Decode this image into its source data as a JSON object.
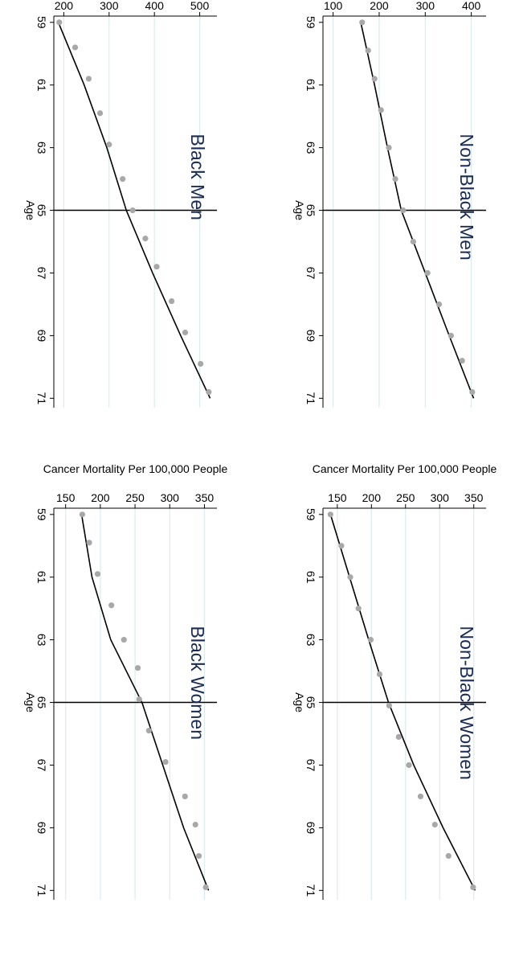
{
  "figure": {
    "ylabel": "Cancer Mortality Per 100,000 People",
    "xlabel": "Age",
    "cutoff": 65
  },
  "colors": {
    "fit_line": "#000000",
    "points": "#a8a8a8",
    "grid": "#d9ecee",
    "title": "#1a2c55",
    "axis": "#000000"
  },
  "chart_data": [
    {
      "type": "scatter",
      "title": "Black Men",
      "xlabel": "Age",
      "ylabel": "Cancer Mortality Per 100,000 People",
      "x_ticks": [
        59,
        61,
        63,
        65,
        67,
        69,
        71
      ],
      "y_ticks": [
        200,
        300,
        400,
        500
      ],
      "xlim": [
        58.8,
        71.3
      ],
      "ylim": [
        178,
        538
      ],
      "x": [
        59,
        59.8,
        60.8,
        61.9,
        62.9,
        64,
        65,
        65.9,
        66.8,
        67.9,
        68.9,
        69.9,
        70.8
      ],
      "y": [
        190,
        225,
        255,
        280,
        300,
        330,
        352,
        380,
        405,
        438,
        468,
        502,
        520
      ],
      "fit_left": {
        "x": [
          59,
          61,
          63,
          65
        ],
        "y": [
          188,
          245,
          295,
          338
        ]
      },
      "fit_right": {
        "x": [
          65,
          67,
          69,
          71
        ],
        "y": [
          338,
          396,
          458,
          523
        ]
      }
    },
    {
      "type": "scatter",
      "title": "Black Women",
      "xlabel": "Age",
      "ylabel": "Cancer Mortality Per 100,000 People",
      "x_ticks": [
        59,
        61,
        63,
        65,
        67,
        69,
        71
      ],
      "y_ticks": [
        150,
        200,
        250,
        300,
        350
      ],
      "xlim": [
        58.8,
        71.3
      ],
      "ylim": [
        133,
        368
      ],
      "x": [
        59,
        59.9,
        60.9,
        61.9,
        63,
        63.9,
        64.9,
        65.9,
        66.9,
        68,
        68.9,
        69.9,
        70.9
      ],
      "y": [
        174,
        184,
        196,
        216,
        234,
        254,
        256,
        270,
        294,
        322,
        337,
        342,
        352
      ],
      "fit_left": {
        "x": [
          59,
          61,
          63,
          65
        ],
        "y": [
          173,
          188,
          215,
          260
        ]
      },
      "fit_right": {
        "x": [
          65,
          67,
          69,
          71
        ],
        "y": [
          260,
          290,
          320,
          356
        ]
      }
    },
    {
      "type": "scatter",
      "title": "Non-Black Men",
      "xlabel": "Age",
      "ylabel": "Cancer Mortality Per 100,000 People",
      "x_ticks": [
        59,
        61,
        63,
        65,
        67,
        69,
        71
      ],
      "y_ticks": [
        100,
        200,
        300,
        400
      ],
      "xlim": [
        58.8,
        71.3
      ],
      "ylim": [
        78,
        432
      ],
      "x": [
        59,
        59.9,
        60.8,
        61.8,
        63,
        64,
        65,
        66,
        67,
        68,
        69,
        69.8,
        70.8
      ],
      "y": [
        163,
        176,
        190,
        204,
        221,
        235,
        252,
        274,
        305,
        330,
        356,
        380,
        402
      ],
      "fit_left": {
        "x": [
          59,
          61,
          63,
          65
        ],
        "y": [
          160,
          190,
          218,
          248
        ]
      },
      "fit_right": {
        "x": [
          65,
          67,
          69,
          71
        ],
        "y": [
          248,
          300,
          352,
          405
        ]
      }
    },
    {
      "type": "scatter",
      "title": "Non-Black Women",
      "xlabel": "Age",
      "ylabel": "Cancer Mortality Per 100,000 People",
      "x_ticks": [
        59,
        61,
        63,
        65,
        67,
        69,
        71
      ],
      "y_ticks": [
        150,
        200,
        250,
        300,
        350
      ],
      "xlim": [
        58.8,
        71.3
      ],
      "ylim": [
        129,
        368
      ],
      "x": [
        59,
        60,
        61,
        62,
        63,
        64.1,
        65.1,
        66.1,
        67,
        68,
        68.9,
        69.9,
        70.9
      ],
      "y": [
        140,
        156,
        169,
        181,
        199,
        212,
        226,
        240,
        255,
        272,
        293,
        313,
        349
      ],
      "fit_left": {
        "x": [
          59,
          61,
          63,
          65
        ],
        "y": [
          140,
          168,
          196,
          225
        ]
      },
      "fit_right": {
        "x": [
          65,
          67,
          69,
          71
        ],
        "y": [
          225,
          262,
          305,
          352
        ]
      }
    }
  ]
}
